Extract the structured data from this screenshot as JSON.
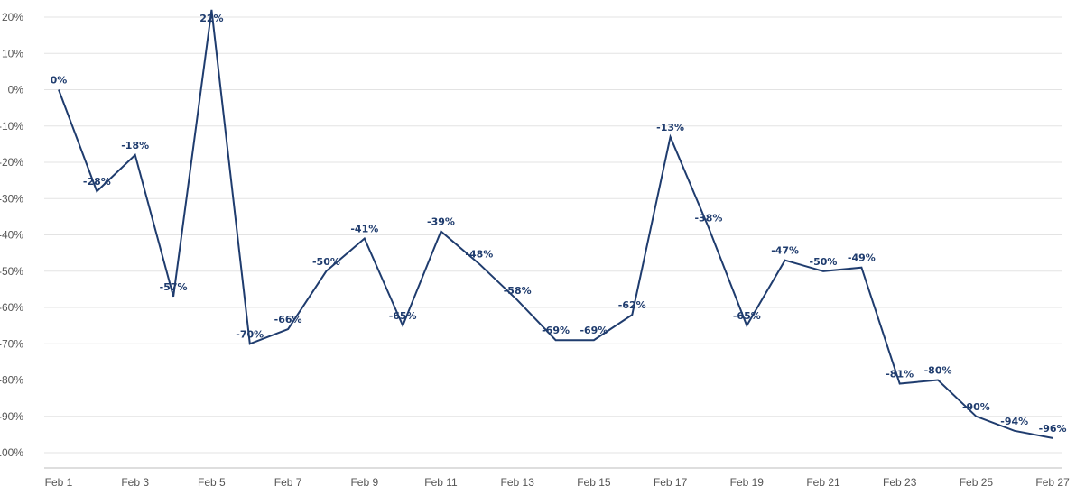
{
  "chart_data": {
    "type": "line",
    "title": "",
    "xlabel": "",
    "ylabel": "",
    "ylim": [
      -100,
      20
    ],
    "y_ticks": [
      20,
      10,
      0,
      -10,
      -20,
      -30,
      -40,
      -50,
      -60,
      -70,
      -80,
      -90,
      -100
    ],
    "y_tick_labels": [
      "20%",
      "10%",
      "0%",
      "-10%",
      "-20%",
      "-30%",
      "-40%",
      "-50%",
      "-60%",
      "-70%",
      "-80%",
      "-90%",
      "-100%"
    ],
    "grid": true,
    "line_color": "#1f3c6e",
    "x_tick_labels": [
      "Feb 1",
      "Feb 3",
      "Feb 5",
      "Feb 7",
      "Feb 9",
      "Feb 11",
      "Feb 13",
      "Feb 15",
      "Feb 17",
      "Feb 19",
      "Feb 21",
      "Feb 23",
      "Feb 25",
      "Feb 27"
    ],
    "categories": [
      "Feb 1",
      "Feb 2",
      "Feb 3",
      "Feb 4",
      "Feb 5",
      "Feb 6",
      "Feb 7",
      "Feb 8",
      "Feb 9",
      "Feb 10",
      "Feb 11",
      "Feb 12",
      "Feb 13",
      "Feb 14",
      "Feb 15",
      "Feb 16",
      "Feb 17",
      "Feb 18",
      "Feb 19",
      "Feb 20",
      "Feb 21",
      "Feb 22",
      "Feb 23",
      "Feb 24",
      "Feb 25",
      "Feb 26",
      "Feb 27"
    ],
    "values": [
      0,
      -28,
      -18,
      -57,
      22,
      -70,
      -66,
      -50,
      -41,
      -65,
      -39,
      -48,
      -58,
      -69,
      -69,
      -62,
      -13,
      -38,
      -65,
      -47,
      -50,
      -49,
      -81,
      -80,
      -90,
      -94,
      -96
    ],
    "data_labels": [
      "0%",
      "-28%",
      "-18%",
      "-57%",
      "22%",
      "-70%",
      "-66%",
      "-50%",
      "-41%",
      "-65%",
      "-39%",
      "-48%",
      "-58%",
      "-69%",
      "-69%",
      "-62%",
      "-13%",
      "-38%",
      "-65%",
      "-47%",
      "-50%",
      "-49%",
      "-81%",
      "-80%",
      "-90%",
      "-94%",
      "-96%"
    ]
  }
}
